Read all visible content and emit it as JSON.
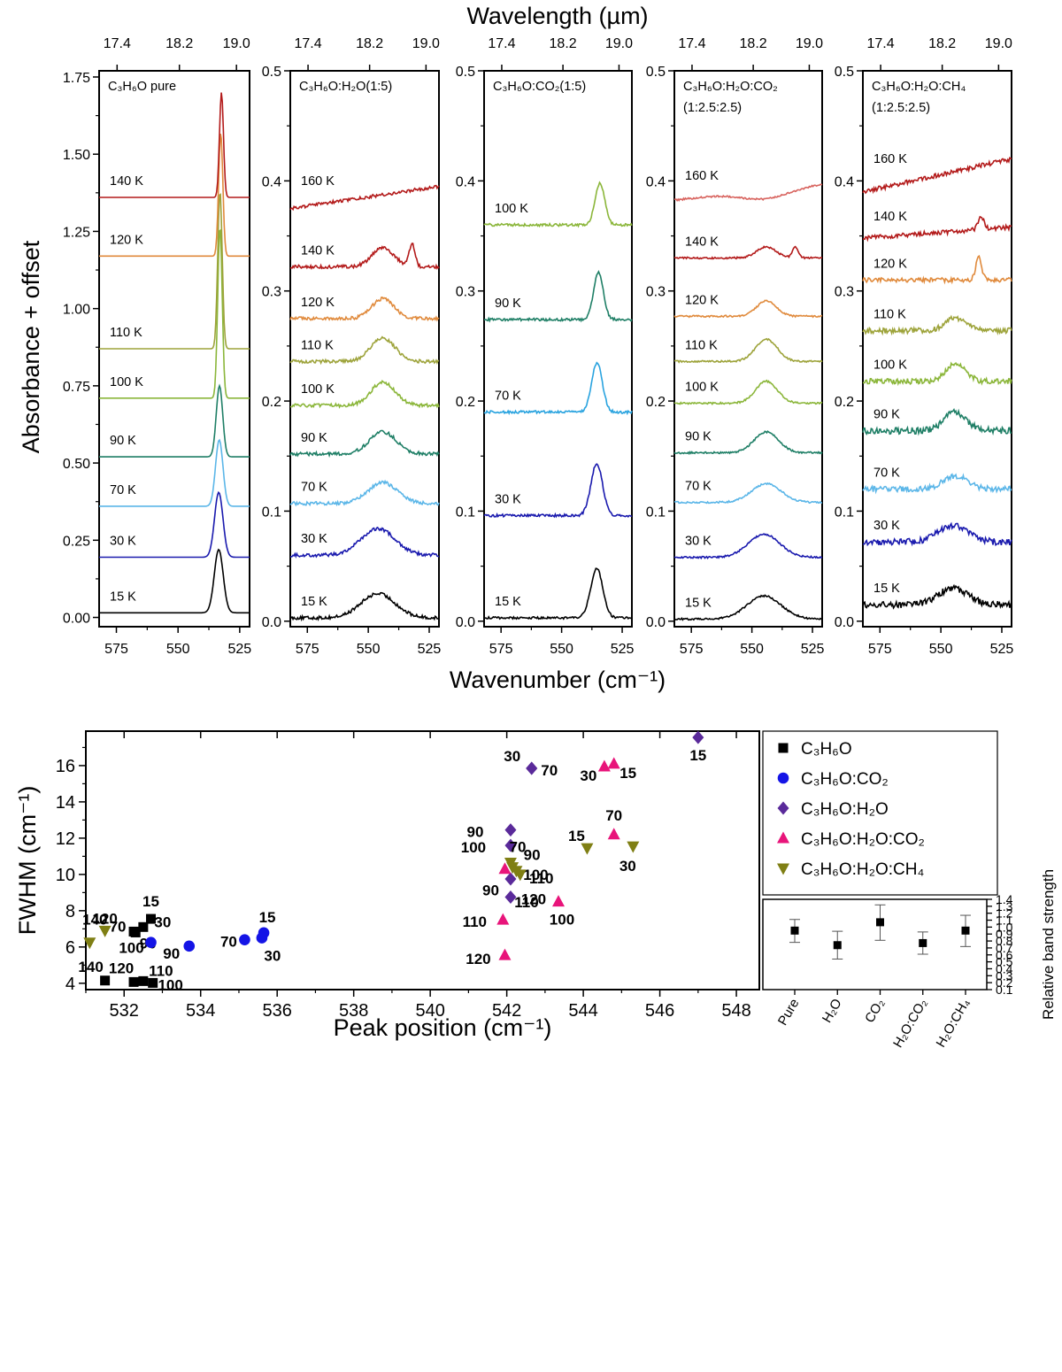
{
  "figure": {
    "top_axis_title": "Wavelength (µm)",
    "left_axis_title": "Absorbance + offset",
    "bottom_axis_title": "Wavenumber (cm⁻¹)"
  },
  "chart_data": [
    {
      "type": "line",
      "panel": 1,
      "title": "C₃H₆O pure",
      "xlabel": "Wavenumber (cm⁻¹)",
      "ylabel": "Absorbance + offset",
      "x_range": [
        582,
        521
      ],
      "xlim": [
        582,
        521
      ],
      "ylim": [
        -0.03,
        1.77
      ],
      "yticks": [
        0,
        0.25,
        0.5,
        0.75,
        1.0,
        1.25,
        1.5,
        1.75
      ],
      "ytick_labels": [
        "0.00",
        "0.25",
        "0.50",
        "0.75",
        "1.00",
        "1.25",
        "1.50",
        "1.75"
      ],
      "xticks": [
        575,
        550,
        525
      ],
      "xtick_labels": [
        "575",
        "550",
        "525"
      ],
      "top_ticks": [
        "17.4",
        "18.2",
        "19.0"
      ],
      "series": [
        {
          "name": "15 K",
          "color": "#000000",
          "baseline": 0.015,
          "peaks": [
            {
              "center": 533.5,
              "height": 0.205,
              "width": 1.8
            }
          ],
          "noise": 0.0
        }
      ]
    },
    {
      "type": "line",
      "panel": 2,
      "title": "C₃H₆O:H₂O(1:5)",
      "xlabel": "Wavenumber (cm⁻¹)",
      "x_range": [
        582,
        521
      ],
      "xlim": [
        582,
        521
      ],
      "ylim": [
        -0.005,
        0.5
      ],
      "yticks": [
        0.0,
        0.1,
        0.2,
        0.3,
        0.4,
        0.5
      ],
      "ytick_labels": [
        "0.0",
        "0.1",
        "0.2",
        "0.3",
        "0.4",
        "0.5"
      ],
      "xticks": [
        575,
        550,
        525
      ],
      "xtick_labels": [
        "575",
        "550",
        "525"
      ],
      "top_ticks": [
        "17.4",
        "18.2",
        "19.0"
      ],
      "series": [
        {
          "name": "15 K",
          "color": "#000000",
          "baseline": 0.003,
          "peaks": [
            {
              "center": 546,
              "height": 0.022,
              "width": 7
            }
          ],
          "noise": 0.0015
        }
      ]
    },
    {
      "type": "line",
      "panel": 3,
      "title": "C₃H₆O:CO₂(1:5)",
      "xlabel": "Wavenumber (cm⁻¹)",
      "x_range": [
        582,
        521
      ],
      "xlim": [
        582,
        521
      ],
      "ylim": [
        -0.005,
        0.5
      ],
      "yticks": [
        0.0,
        0.1,
        0.2,
        0.3,
        0.4,
        0.5
      ],
      "ytick_labels": [
        "0.0",
        "0.1",
        "0.2",
        "0.3",
        "0.4",
        "0.5"
      ],
      "xticks": [
        575,
        550,
        525
      ],
      "xtick_labels": [
        "575",
        "550",
        "525"
      ],
      "top_ticks": [
        "17.4",
        "18.2",
        "19.0"
      ],
      "series": [
        {
          "name": "15 K",
          "color": "#000000",
          "baseline": 0.003,
          "peaks": [
            {
              "center": 535.5,
              "height": 0.045,
              "width": 2.5
            }
          ],
          "noise": 0.001
        }
      ]
    },
    {
      "type": "line",
      "panel": 4,
      "title": "C₃H₆O:H₂O:CO₂",
      "subtitle": "(1:2.5:2.5)",
      "xlabel": "Wavenumber (cm⁻¹)",
      "x_range": [
        582,
        521
      ],
      "xlim": [
        582,
        521
      ],
      "ylim": [
        -0.005,
        0.5
      ],
      "yticks": [
        0.0,
        0.1,
        0.2,
        0.3,
        0.4,
        0.5
      ],
      "ytick_labels": [
        "0.0",
        "0.1",
        "0.2",
        "0.3",
        "0.4",
        "0.5"
      ],
      "xticks": [
        575,
        550,
        525
      ],
      "xtick_labels": [
        "575",
        "550",
        "525"
      ],
      "top_ticks": [
        "17.4",
        "18.2",
        "19.0"
      ],
      "series": [
        {
          "name": "15 K",
          "color": "#000000",
          "baseline": 0.002,
          "peaks": [
            {
              "center": 545,
              "height": 0.021,
              "width": 7
            }
          ],
          "noise": 0.0008
        }
      ]
    },
    {
      "type": "line",
      "panel": 5,
      "title": "C₃H₆O:H₂O:CH₄",
      "subtitle": "(1:2.5:2.5)",
      "xlabel": "Wavenumber (cm⁻¹)",
      "x_range": [
        582,
        521
      ],
      "xlim": [
        582,
        521
      ],
      "ylim": [
        -0.005,
        0.5
      ],
      "yticks": [
        0.0,
        0.1,
        0.2,
        0.3,
        0.4,
        0.5
      ],
      "ytick_labels": [
        "0.0",
        "0.1",
        "0.2",
        "0.3",
        "0.4",
        "0.5"
      ],
      "xticks": [
        575,
        550,
        525
      ],
      "xtick_labels": [
        "575",
        "550",
        "525"
      ],
      "top_ticks": [
        "17.4",
        "18.2",
        "19.0"
      ],
      "series": [
        {
          "name": "15 K",
          "color": "#000000",
          "baseline": 0.015,
          "peaks": [
            {
              "center": 545,
              "height": 0.015,
              "width": 6
            }
          ],
          "noise": 0.003
        }
      ]
    },
    {
      "type": "scatter",
      "panel": "fwhm",
      "xlabel": "Peak position (cm⁻¹)",
      "ylabel": "FWHM (cm⁻¹)",
      "xlim": [
        531,
        548.6
      ],
      "ylim": [
        3.65,
        17.9
      ],
      "xticks": [
        532,
        534,
        536,
        538,
        540,
        542,
        544,
        546,
        548
      ],
      "yticks": [
        4,
        6,
        8,
        10,
        12,
        14,
        16
      ],
      "series": [
        {
          "name": "C₃H₆O",
          "color": "#000000",
          "marker": "square",
          "points": [
            {
              "x": 532.7,
              "y": 7.55,
              "label": "15"
            },
            {
              "x": 532.5,
              "y": 7.1,
              "label": "30"
            },
            {
              "x": 532.25,
              "y": 6.85,
              "label": "70"
            },
            {
              "x": 532.3,
              "y": 6.8,
              "label": "90"
            },
            {
              "x": 532.75,
              "y": 4.02,
              "label": "100"
            },
            {
              "x": 532.5,
              "y": 4.12,
              "label": "110"
            },
            {
              "x": 532.25,
              "y": 4.07,
              "label": "120"
            },
            {
              "x": 531.5,
              "y": 4.15,
              "label": "140"
            }
          ]
        },
        {
          "name": "C₃H₆O:CO₂",
          "color": "#1414e6",
          "marker": "circle",
          "points": [
            {
              "x": 535.65,
              "y": 6.78,
              "label": "15"
            },
            {
              "x": 535.6,
              "y": 6.5,
              "label": "30"
            },
            {
              "x": 535.15,
              "y": 6.4,
              "label": "70"
            },
            {
              "x": 533.7,
              "y": 6.05,
              "label": "90"
            },
            {
              "x": 532.7,
              "y": 6.25,
              "label": "100"
            }
          ]
        }
      ]
    },
    {
      "type": "scatter",
      "panel": "band_strength",
      "ylabel": "Relative band strength",
      "ylim": [
        0.1,
        1.4
      ],
      "yticks": [
        0.1,
        0.2,
        0.3,
        0.4,
        0.5,
        0.6,
        0.7,
        0.8,
        0.9,
        1.0,
        1.1,
        1.2,
        1.3,
        1.4
      ],
      "ytick_labels": [
        "0.1",
        "0.2",
        "0.3",
        "0.4",
        "0.5",
        "0.6",
        "0.7",
        "0.8",
        "0.9",
        "1.0",
        "1.1",
        "1.2",
        "1.3",
        "1.4"
      ],
      "categories": [
        "Pure",
        "H₂O",
        "CO₂",
        "H₂O:CO₂",
        "H₂O:CH₄"
      ],
      "values": [
        0.95,
        0.74,
        1.07,
        0.77,
        0.95
      ],
      "err_low": [
        0.78,
        0.54,
        0.81,
        0.61,
        0.72
      ],
      "err_high": [
        1.11,
        0.94,
        1.32,
        0.93,
        1.17
      ]
    }
  ],
  "legend": {
    "entries": [
      "C₃H₆O",
      "C₃H₆O:CO₂",
      "C₃H₆O:H₂O",
      "C₃H₆O:H₂O:CO₂",
      "C₃H₆O:H₂O:CH₄"
    ]
  }
}
